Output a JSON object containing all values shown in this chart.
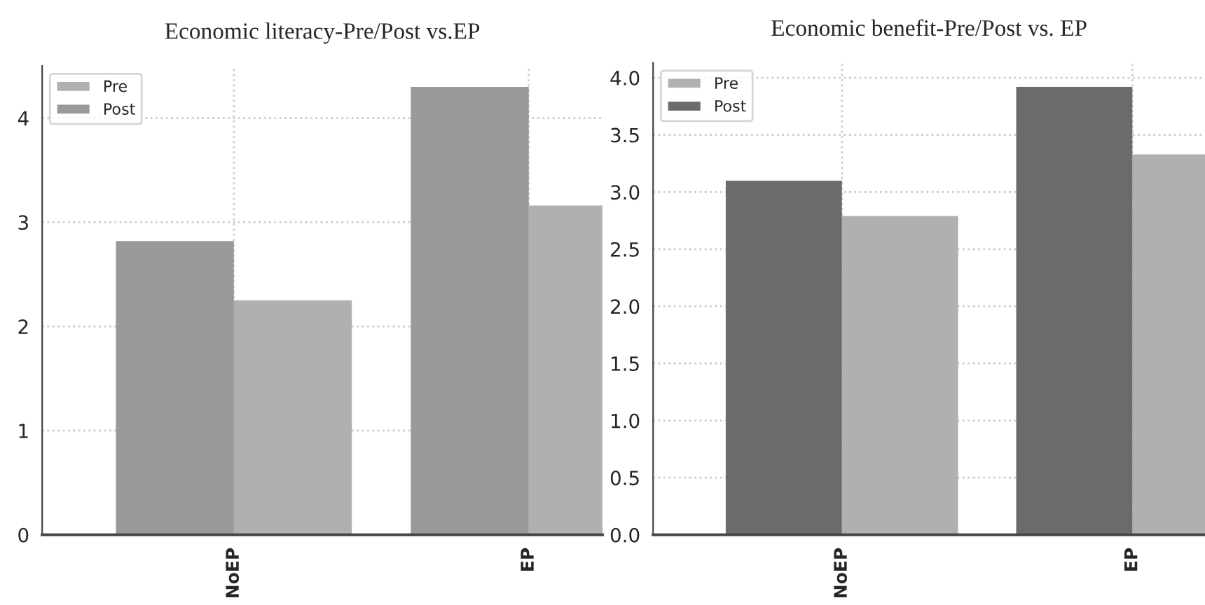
{
  "chart_data": [
    {
      "type": "bar",
      "title": "Economic literacy-Pre/Post vs.EP",
      "categories": [
        "NoEP",
        "EP"
      ],
      "ylim": [
        0,
        4.5
      ],
      "yticks": [
        0,
        1,
        2,
        3,
        4
      ],
      "grid": true,
      "legend": "top left",
      "series": [
        {
          "name": "Pre",
          "color": "#b0b0b0",
          "values": [
            2.25,
            3.16
          ]
        },
        {
          "name": "Post",
          "color": "#999999",
          "values": [
            2.82,
            4.3
          ]
        }
      ]
    },
    {
      "type": "bar",
      "title": "Economic benefit-Pre/Post vs. EP",
      "categories": [
        "NoEP",
        "EP"
      ],
      "ylim": [
        0,
        4.13
      ],
      "yticks": [
        {
          "value": 0,
          "label": "0.0"
        },
        0.5,
        {
          "value": 1,
          "label": "1.0"
        },
        1.5,
        {
          "value": 2,
          "label": "2.0"
        },
        2.5,
        {
          "value": 3,
          "label": "3.0"
        },
        3.5,
        {
          "value": 4,
          "label": "4.0"
        }
      ],
      "grid": true,
      "legend": "top left",
      "series": [
        {
          "name": "Pre",
          "color": "#b0b0b0",
          "values": [
            2.79,
            3.33
          ]
        },
        {
          "name": "Post",
          "color": "#6b6b6b",
          "values": [
            3.1,
            3.92
          ]
        }
      ]
    }
  ]
}
